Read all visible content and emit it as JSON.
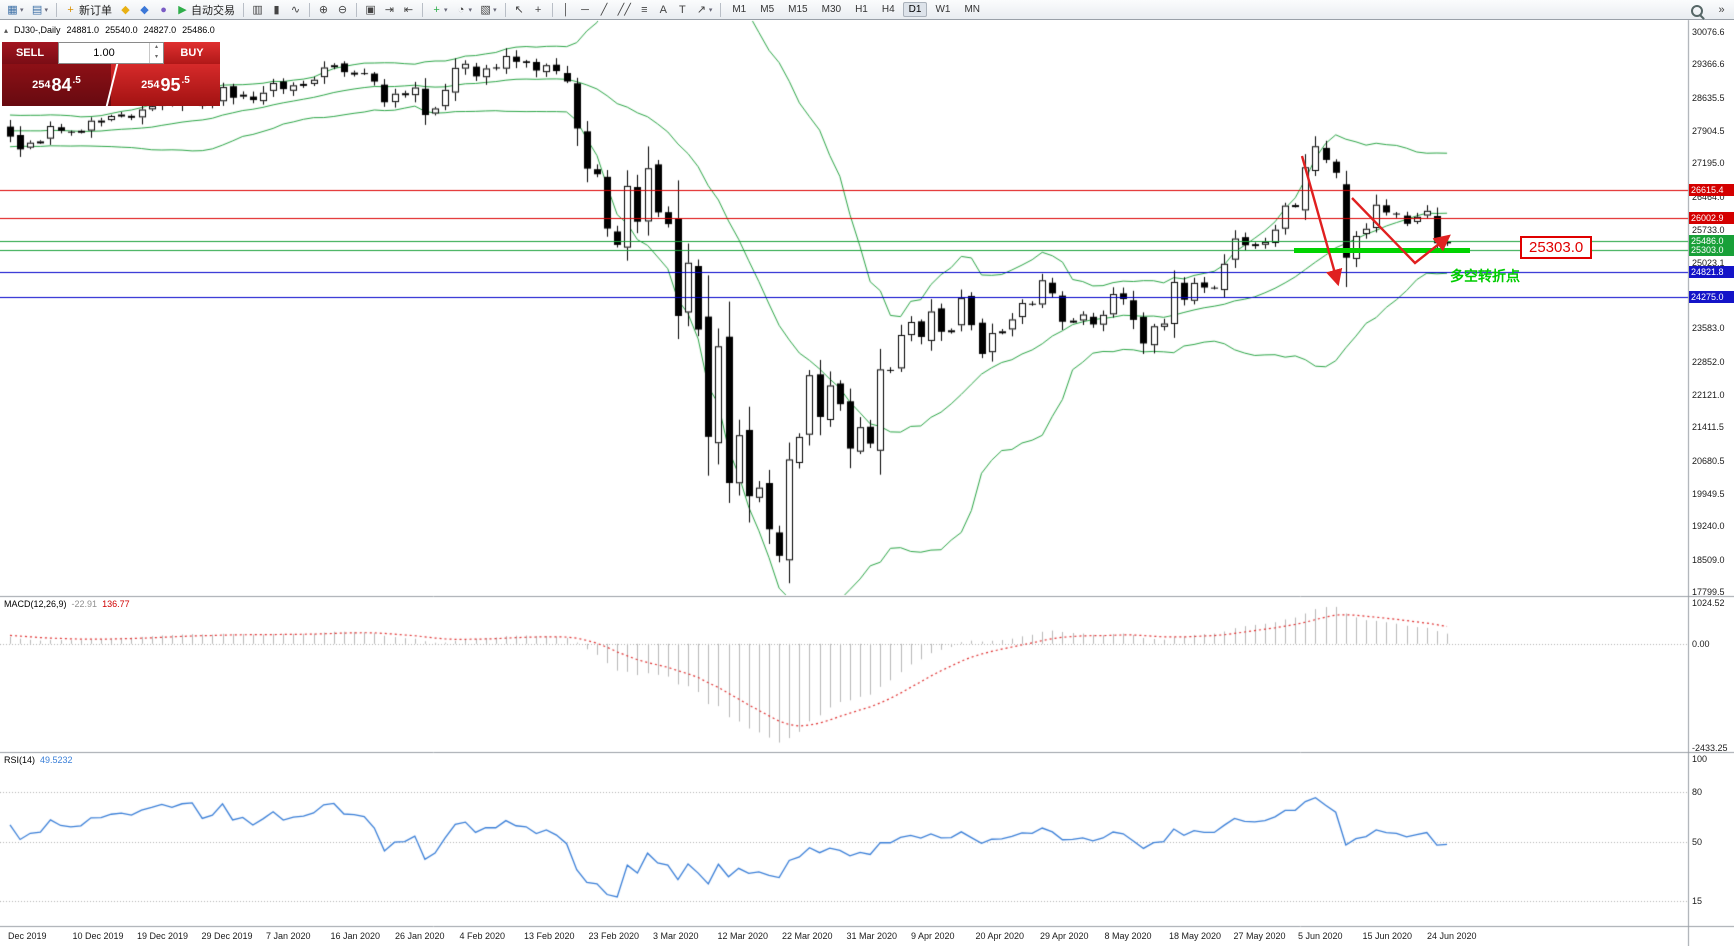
{
  "toolbar": {
    "caret_glyph": "▾",
    "items": [
      {
        "name": "new-chart",
        "glyph": "▦",
        "color": "#3a6ea5",
        "caret": true
      },
      {
        "name": "profiles",
        "glyph": "▤",
        "color": "#3a6ea5",
        "caret": true
      },
      {
        "type": "sep"
      },
      {
        "name": "new-order",
        "glyph": "+",
        "color": "#d98f00",
        "label": "新订单"
      },
      {
        "name": "metaeditor",
        "glyph": "◆",
        "color": "#e8b013"
      },
      {
        "name": "market",
        "glyph": "◆",
        "color": "#3b78d8"
      },
      {
        "name": "signals",
        "glyph": "●",
        "color": "#7a5cc5"
      },
      {
        "name": "autotrading",
        "glyph": "▶",
        "color": "#2fae4a",
        "label": "自动交易"
      },
      {
        "type": "sep"
      },
      {
        "name": "bar-chart",
        "glyph": "▥"
      },
      {
        "name": "candlestick-chart",
        "glyph": "▮"
      },
      {
        "name": "line-chart",
        "glyph": "∿"
      },
      {
        "type": "sep"
      },
      {
        "name": "zoom-in",
        "glyph": "⊕"
      },
      {
        "name": "zoom-out",
        "glyph": "⊖"
      },
      {
        "type": "sep"
      },
      {
        "name": "tile-windows",
        "glyph": "▣"
      },
      {
        "name": "auto-scroll",
        "glyph": "⇥"
      },
      {
        "name": "chart-shift",
        "glyph": "⇤"
      },
      {
        "type": "sep"
      },
      {
        "name": "indicators",
        "glyph": "+",
        "color": "#2fae4a",
        "caret": true
      },
      {
        "name": "periods",
        "glyph": "◔",
        "caret": true
      },
      {
        "name": "templates",
        "glyph": "▧",
        "caret": true
      },
      {
        "type": "sep"
      },
      {
        "name": "cursor",
        "glyph": "↖"
      },
      {
        "name": "crosshair",
        "glyph": "+"
      },
      {
        "type": "sep"
      },
      {
        "name": "vertical-line",
        "glyph": "│"
      },
      {
        "name": "horizontal-line",
        "glyph": "─"
      },
      {
        "name": "trendline",
        "glyph": "╱"
      },
      {
        "name": "equidistant-channel",
        "glyph": "╱╱"
      },
      {
        "name": "fibonacci",
        "glyph": "≡"
      },
      {
        "name": "text",
        "glyph": "A"
      },
      {
        "name": "text-label",
        "glyph": "T"
      },
      {
        "name": "arrows-tool",
        "glyph": "↗",
        "caret": true
      },
      {
        "type": "sep"
      }
    ],
    "timeframes": [
      "M1",
      "M5",
      "M15",
      "M30",
      "H1",
      "H4",
      "D1",
      "W1",
      "MN"
    ],
    "active_timeframe": "D1",
    "right_icons": [
      {
        "name": "search",
        "glyph": ""
      },
      {
        "name": "toolbar-overflow",
        "glyph": "»"
      }
    ]
  },
  "chart_header": {
    "collapse_glyph": "▴",
    "symbol_period": "DJ30-,Daily",
    "open": "24881.0",
    "high": "25540.0",
    "low": "24827.0",
    "close": "25486.0"
  },
  "trade_panel": {
    "sell_label": "SELL",
    "buy_label": "BUY",
    "volume": "1.00",
    "spinner_up_glyph": "▴",
    "spinner_down_glyph": "▾",
    "sell_price_prefix": "254",
    "sell_price_digits": "84",
    "sell_price_fraction": ".5",
    "buy_price_prefix": "254",
    "buy_price_digits": "95",
    "buy_price_fraction": ".5"
  },
  "annotations": {
    "price_box": "25303.0",
    "turning_point_text": "多空转折点"
  },
  "price_axis": {
    "labels": [
      "30076.6",
      "29366.6",
      "28635.5",
      "27904.5",
      "27195.0",
      "26464.0",
      "25733.0",
      "25023.1",
      "23583.0",
      "22852.0",
      "22121.0",
      "21411.5",
      "20680.5",
      "19949.5",
      "19240.0",
      "18509.0",
      "17799.5"
    ],
    "tags": [
      {
        "text": "26615.4",
        "price": 26615.4,
        "type": "red"
      },
      {
        "text": "26002.9",
        "price": 26002.9,
        "type": "red"
      },
      {
        "text": "25486.0",
        "price": 25486.0,
        "type": "green"
      },
      {
        "text": "25303.0",
        "price": 25303.0,
        "type": "green"
      },
      {
        "text": "24821.8",
        "price": 24821.8,
        "type": "blue"
      },
      {
        "text": "24275.0",
        "price": 24275.0,
        "type": "blue"
      }
    ]
  },
  "macd_panel": {
    "label": "MACD(12,26,9)",
    "main_value": "-22.91",
    "signal_value": "136.77",
    "axis_labels": [
      "1024.52",
      "0.00",
      "-2433.25"
    ],
    "max": 1024.52,
    "min": -2433.25
  },
  "rsi_panel": {
    "label": "RSI(14)",
    "value": "49.5232",
    "axis_labels": [
      "100",
      "80",
      "50",
      "15"
    ],
    "levels": [
      80,
      50,
      15
    ]
  },
  "date_axis": [
    "Dec 2019",
    "10 Dec 2019",
    "19 Dec 2019",
    "29 Dec 2019",
    "7 Jan 2020",
    "16 Jan 2020",
    "26 Jan 2020",
    "4 Feb 2020",
    "13 Feb 2020",
    "23 Feb 2020",
    "3 Mar 2020",
    "12 Mar 2020",
    "22 Mar 2020",
    "31 Mar 2020",
    "9 Apr 2020",
    "20 Apr 2020",
    "29 Apr 2020",
    "8 May 2020",
    "18 May 2020",
    "27 May 2020",
    "5 Jun 2020",
    "15 Jun 2020",
    "24 Jun 2020"
  ],
  "chart_data": {
    "type": "candlestick",
    "symbol": "DJ30",
    "period": "Daily",
    "price_range": [
      17799.5,
      30076.6
    ],
    "indicators": {
      "bollinger": {
        "period": 20,
        "deviation": 2
      },
      "macd": {
        "fast": 12,
        "slow": 26,
        "signal": 9
      },
      "rsi": {
        "period": 14
      }
    },
    "pre_closes": [
      27046,
      27186,
      27462,
      27674,
      27681,
      27783,
      28004,
      28036,
      28121,
      28091,
      28005,
      27821,
      27934,
      28015,
      28066,
      28051,
      27766,
      27821,
      27896,
      28109,
      28051
    ],
    "closes": [
      27783,
      27503,
      27650,
      27678,
      28015,
      27910,
      27882,
      27911,
      28132,
      28135,
      28235,
      28267,
      28239,
      28377,
      28455,
      28551,
      28515,
      28621,
      28645,
      28462,
      28538,
      28869,
      28635,
      28703,
      28584,
      28745,
      28957,
      28824,
      28907,
      28939,
      29030,
      29298,
      29348,
      29196,
      29186,
      29160,
      28990,
      28536,
      28723,
      28734,
      28859,
      28256,
      28400,
      28808,
      29290,
      29380,
      29103,
      29277,
      29276,
      29551,
      29423,
      29398,
      29232,
      29348,
      29220,
      28992,
      27961,
      27081,
      26958,
      25767,
      25409,
      26703,
      25917,
      27090,
      26121,
      25865,
      23851,
      25018,
      23553,
      21201,
      23186,
      20188,
      21237,
      19899,
      20087,
      19174,
      18592,
      20705,
      21200,
      22552,
      21637,
      22327,
      21917,
      20944,
      21413,
      21053,
      22680,
      22654,
      23434,
      23719,
      23391,
      23949,
      23504,
      23537,
      24242,
      23650,
      23018,
      23476,
      23515,
      23775,
      24134,
      24102,
      24634,
      24346,
      23724,
      23749,
      23883,
      23665,
      23876,
      24331,
      24222,
      23765,
      23248,
      23625,
      23685,
      24597,
      24207,
      24576,
      24474,
      24465,
      24995,
      25548,
      25401,
      25383,
      25475,
      25743,
      26270,
      26282,
      27111,
      27572,
      27272,
      26990,
      25128,
      25605,
      25763,
      26290,
      26120,
      26080,
      25871,
      26025,
      26156,
      25446,
      25486
    ]
  },
  "colors": {
    "background": "#ffffff",
    "bull_candle": "#ffffff",
    "bear_candle": "#000000",
    "candle_outline": "#000000",
    "bollinger": "#2aa545",
    "resistance_line": "#dd0000",
    "support_blue_line": "#0000cc",
    "green_line": "#18a038",
    "thick_support": "#00d300",
    "macd_histogram": "#b8b8b8",
    "macd_signal": "#e03030",
    "rsi_line": "#3a7fd8",
    "arrow": "#e02020",
    "tag_red": "#d40000",
    "tag_green": "#18a038",
    "tag_blue": "#1414c8"
  }
}
